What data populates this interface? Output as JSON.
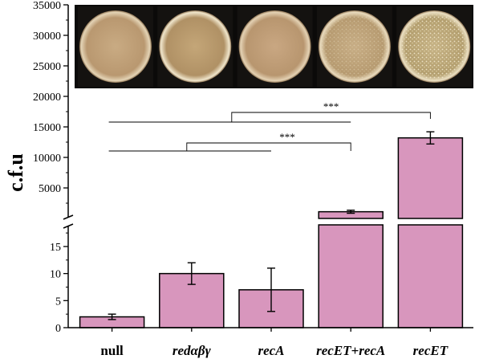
{
  "chart_data": {
    "type": "bar",
    "ylabel": "c.f.u",
    "categories": [
      "null",
      "redαβγ",
      "recA",
      "recET+recA",
      "recET"
    ],
    "category_styles": [
      "bold",
      "bold-italic",
      "bold-italic",
      "bold-italic",
      "bold-italic"
    ],
    "values": [
      2,
      10,
      7,
      1100,
      13200
    ],
    "errors": [
      0.5,
      2,
      4,
      250,
      1000
    ],
    "y_axis_broken": true,
    "lower_segment": {
      "ylim": [
        0,
        19
      ],
      "ticks": [
        "0",
        "5",
        "10",
        "15"
      ]
    },
    "upper_segment": {
      "ylim": [
        0,
        35000
      ],
      "ticks": [
        "5000",
        "10000",
        "15000",
        "20000",
        "25000",
        "30000",
        "35000"
      ]
    },
    "significance": [
      {
        "from": "null",
        "to": "recET+recA",
        "label": "***"
      },
      {
        "from": "redαβγ",
        "to": "recA",
        "label": ""
      },
      {
        "from": "null",
        "to": "recET+recA",
        "label": ""
      },
      {
        "from": "recA",
        "to": "recET",
        "label": "***"
      }
    ],
    "bar_color": "#d896bd",
    "plate_images": [
      "petri-dish",
      "petri-dish",
      "petri-dish",
      "petri-dish",
      "petri-dish"
    ]
  }
}
